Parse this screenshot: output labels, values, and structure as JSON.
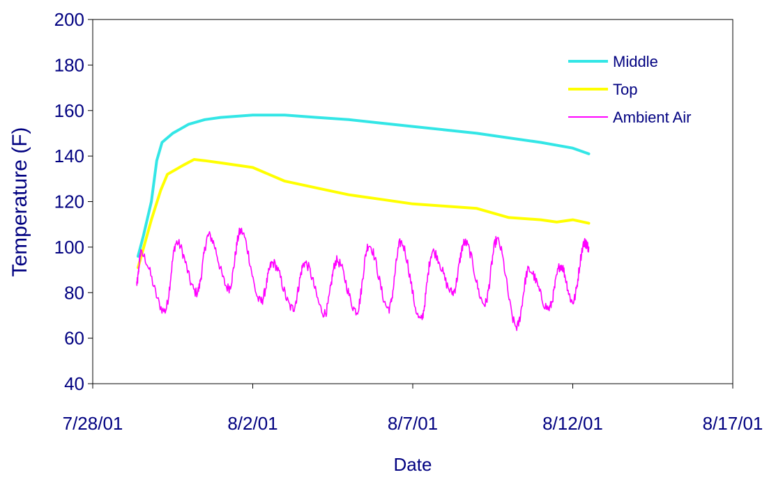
{
  "chart_data": {
    "type": "line",
    "title": "",
    "xlabel": "Date",
    "ylabel": "Temperature (F)",
    "ylim": [
      40,
      200
    ],
    "yticks": [
      40,
      60,
      80,
      100,
      120,
      140,
      160,
      180,
      200
    ],
    "xlim": [
      "7/28/01",
      "8/17/01"
    ],
    "xticks": [
      "7/28/01",
      "8/2/01",
      "8/7/01",
      "8/12/01",
      "8/17/01"
    ],
    "grid": false,
    "legend": "top-right",
    "series": [
      {
        "name": "Middle",
        "color": "#33e6e6",
        "points": [
          [
            "7/29/01 10:00",
            96
          ],
          [
            "7/29/01 14:00",
            105
          ],
          [
            "7/29/01 20:00",
            120
          ],
          [
            "7/30/01 00:00",
            138
          ],
          [
            "7/30/01 04:00",
            146
          ],
          [
            "7/30/01 12:00",
            150
          ],
          [
            "7/31/01 00:00",
            154
          ],
          [
            "7/31/01 12:00",
            156
          ],
          [
            "8/1/01 00:00",
            157
          ],
          [
            "8/2/01 00:00",
            158
          ],
          [
            "8/3/01 00:00",
            158
          ],
          [
            "8/4/01 00:00",
            157
          ],
          [
            "8/5/01 00:00",
            156
          ],
          [
            "8/6/01 00:00",
            154.5
          ],
          [
            "8/7/01 00:00",
            153
          ],
          [
            "8/8/01 00:00",
            151.5
          ],
          [
            "8/9/01 00:00",
            150
          ],
          [
            "8/10/01 00:00",
            148
          ],
          [
            "8/11/01 00:00",
            146
          ],
          [
            "8/12/01 00:00",
            143.5
          ],
          [
            "8/12/01 12:00",
            141
          ]
        ]
      },
      {
        "name": "Top",
        "color": "#ffff00",
        "points": [
          [
            "7/29/01 10:00",
            91
          ],
          [
            "7/29/01 20:00",
            112
          ],
          [
            "7/30/01 03:00",
            125
          ],
          [
            "7/30/01 08:00",
            132
          ],
          [
            "7/30/01 20:00",
            136
          ],
          [
            "7/31/01 04:00",
            138.5
          ],
          [
            "7/31/01 12:00",
            138
          ],
          [
            "8/1/01 00:00",
            137
          ],
          [
            "8/2/01 00:00",
            135
          ],
          [
            "8/2/01 12:00",
            132
          ],
          [
            "8/3/01 00:00",
            129
          ],
          [
            "8/4/01 00:00",
            126
          ],
          [
            "8/5/01 00:00",
            123
          ],
          [
            "8/6/01 00:00",
            121
          ],
          [
            "8/7/01 00:00",
            119
          ],
          [
            "8/8/01 00:00",
            118
          ],
          [
            "8/9/01 00:00",
            117
          ],
          [
            "8/10/01 00:00",
            113
          ],
          [
            "8/11/01 00:00",
            112
          ],
          [
            "8/11/01 12:00",
            111
          ],
          [
            "8/12/01 00:00",
            112
          ],
          [
            "8/12/01 12:00",
            110.5
          ]
        ]
      },
      {
        "name": "Ambient Air",
        "color": "#ff00ff",
        "daily_highs": [
          [
            "7/29/01 12:00",
            97
          ],
          [
            "7/30/01 15:00",
            102
          ],
          [
            "7/31/01 15:00",
            105
          ],
          [
            "8/1/01 15:00",
            107
          ],
          [
            "8/2/01 15:00",
            93
          ],
          [
            "8/3/01 15:00",
            93
          ],
          [
            "8/4/01 15:00",
            94
          ],
          [
            "8/5/01 15:00",
            101
          ],
          [
            "8/6/01 15:00",
            102
          ],
          [
            "8/7/01 15:00",
            98
          ],
          [
            "8/8/01 15:00",
            102
          ],
          [
            "8/9/01 15:00",
            103
          ],
          [
            "8/10/01 15:00",
            90
          ],
          [
            "8/11/01 15:00",
            92
          ],
          [
            "8/12/01 09:00",
            102
          ]
        ],
        "daily_lows": [
          [
            "7/29/01 09:00",
            84
          ],
          [
            "7/30/01 06:00",
            72
          ],
          [
            "7/31/01 06:00",
            80
          ],
          [
            "8/1/01 06:00",
            82
          ],
          [
            "8/2/01 06:00",
            76
          ],
          [
            "8/3/01 06:00",
            73
          ],
          [
            "8/4/01 06:00",
            71
          ],
          [
            "8/5/01 06:00",
            72
          ],
          [
            "8/6/01 06:00",
            73
          ],
          [
            "8/7/01 06:00",
            68
          ],
          [
            "8/8/01 06:00",
            80
          ],
          [
            "8/9/01 06:00",
            75
          ],
          [
            "8/10/01 06:00",
            65
          ],
          [
            "8/11/01 06:00",
            73
          ],
          [
            "8/12/01 00:00",
            76
          ],
          [
            "8/12/01 12:00",
            100
          ]
        ]
      }
    ]
  }
}
